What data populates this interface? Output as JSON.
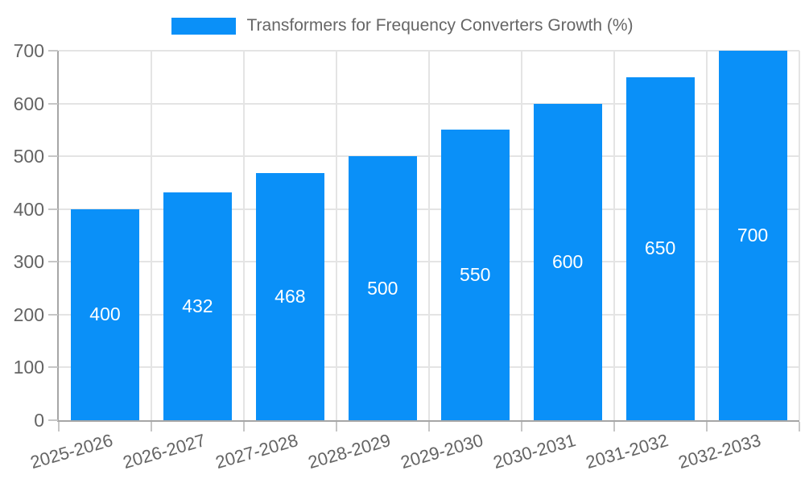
{
  "legend": {
    "label": "Transformers for Frequency Converters Growth (%)"
  },
  "chart_data": {
    "type": "bar",
    "title": "Transformers for Frequency Converters Growth (%)",
    "categories": [
      "2025-2026",
      "2026-2027",
      "2027-2028",
      "2028-2029",
      "2029-2030",
      "2030-2031",
      "2031-2032",
      "2032-2033"
    ],
    "values": [
      400,
      432,
      468,
      500,
      550,
      600,
      650,
      700
    ],
    "xlabel": "",
    "ylabel": "",
    "ylim": [
      0,
      700
    ],
    "yticks": [
      0,
      100,
      200,
      300,
      400,
      500,
      600,
      700
    ],
    "grid": true,
    "legend_position": "top",
    "bar_color": "#0a90f8",
    "bar_label_color": "#ffffff",
    "axis_text_color": "#646464"
  }
}
